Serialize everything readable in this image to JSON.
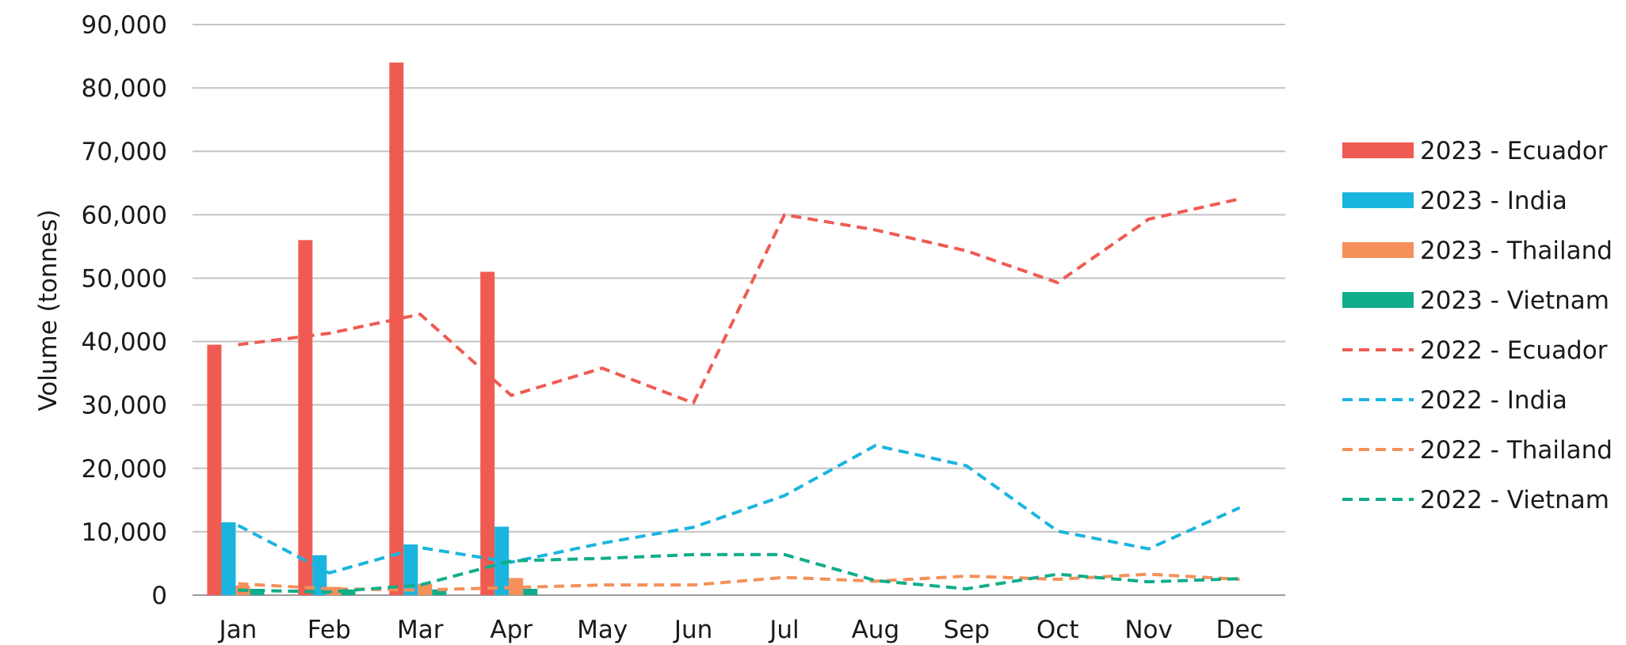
{
  "chart_data": {
    "type": "bar",
    "title": "",
    "xlabel": "",
    "ylabel": "Volume (tonnes)",
    "ylim": [
      0,
      90000
    ],
    "yticks": [
      0,
      10000,
      20000,
      30000,
      40000,
      50000,
      60000,
      70000,
      80000,
      90000
    ],
    "ytick_labels": [
      "0",
      "10,000",
      "20,000",
      "30,000",
      "40,000",
      "50,000",
      "60,000",
      "70,000",
      "80,000",
      "90,000"
    ],
    "categories": [
      "Jan",
      "Feb",
      "Mar",
      "Apr",
      "May",
      "Jun",
      "Jul",
      "Aug",
      "Sep",
      "Oct",
      "Nov",
      "Dec"
    ],
    "grid": "horizontal",
    "legend_position": "right",
    "bar_series": [
      {
        "name": "2023 - Ecuador",
        "color": "#ef5b52",
        "values": [
          39500,
          56000,
          84000,
          51000
        ]
      },
      {
        "name": "2023 - India",
        "color": "#1ab5df",
        "values": [
          11500,
          6300,
          8000,
          10800
        ]
      },
      {
        "name": "2023 - Thailand",
        "color": "#f4905a",
        "values": [
          1500,
          1300,
          1800,
          2700
        ]
      },
      {
        "name": "2023 - Vietnam",
        "color": "#10ad8a",
        "values": [
          1000,
          900,
          900,
          1000
        ]
      }
    ],
    "line_series": [
      {
        "name": "2022 - Ecuador",
        "color": "#ef5b52",
        "style": "dashed",
        "values": [
          39500,
          41300,
          44300,
          31500,
          35800,
          30300,
          60000,
          57600,
          54300,
          49300,
          59300,
          62500
        ]
      },
      {
        "name": "2022 - India",
        "color": "#1ab5df",
        "style": "dashed",
        "values": [
          11000,
          3500,
          7500,
          5200,
          8200,
          10700,
          15700,
          23600,
          20400,
          10100,
          7300,
          13800
        ]
      },
      {
        "name": "2022 - Thailand",
        "color": "#f4905a",
        "style": "dashed",
        "values": [
          1800,
          1000,
          800,
          1200,
          1600,
          1600,
          2800,
          2200,
          3000,
          2500,
          3300,
          2500
        ]
      },
      {
        "name": "2022 - Vietnam",
        "color": "#10ad8a",
        "style": "dashed",
        "values": [
          800,
          500,
          1600,
          5400,
          5800,
          6400,
          6400,
          2300,
          1000,
          3300,
          2100,
          2600
        ]
      }
    ]
  }
}
